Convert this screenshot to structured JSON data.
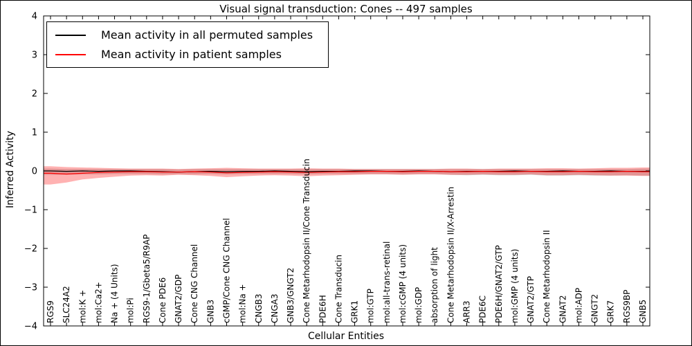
{
  "chart_data": {
    "type": "line",
    "title": "Visual signal transduction: Cones -- 497 samples",
    "xlabel": "Cellular Entities",
    "ylabel": "Inferred Activity",
    "ylim": [
      -4,
      4
    ],
    "yticks": [
      -4,
      -3,
      -2,
      -1,
      0,
      1,
      2,
      3,
      4
    ],
    "grid": false,
    "legend_position": "upper left",
    "categories": [
      "RGS9",
      "SLC24A2",
      "mol:K +",
      "mol:Ca2+",
      "Na + (4 Units)",
      "mol:Pi",
      "RGS9-1/Gbeta5/R9AP",
      "Cone PDE6",
      "GNAT2/GDP",
      "Cone CNG Channel",
      "GNB3",
      "cGMP/Cone CNG Channel",
      "mol:Na +",
      "CNGB3",
      "CNGA3",
      "GNB3/GNGT2",
      "Cone Metarhodopsin II/Cone Transducin",
      "PDE6H",
      "Cone Transducin",
      "GRK1",
      "mol:GTP",
      "mol:all-trans-retinal",
      "mol:cGMP (4 units)",
      "mol:GDP",
      "absorption of light",
      "Cone Metarhodopsin II/X-Arrestin",
      "ARR3",
      "PDE6C",
      "PDE6H/GNAT2/GTP",
      "mol:GMP (4 units)",
      "GNAT2/GTP",
      "Cone Metarhodopsin II",
      "GNAT2",
      "mol:ADP",
      "GNGT2",
      "GRK7",
      "RGS9BP",
      "GNB5"
    ],
    "series": [
      {
        "name": "Mean activity in all permuted samples",
        "color": "#000000",
        "band_color": "#999999",
        "band_opacity": 0.4,
        "values": [
          0,
          -0.01,
          0,
          -0.01,
          0,
          0,
          -0.01,
          -0.02,
          -0.03,
          -0.02,
          -0.01,
          -0.02,
          -0.01,
          -0.01,
          0,
          -0.01,
          -0.02,
          -0.01,
          -0.01,
          0,
          0,
          -0.01,
          -0.01,
          0,
          -0.01,
          -0.02,
          -0.01,
          -0.01,
          -0.01,
          0,
          -0.01,
          -0.01,
          0,
          -0.01,
          -0.01,
          0,
          -0.01,
          -0.01
        ],
        "band_upper": [
          0.06,
          0.05,
          0.05,
          0.05,
          0.05,
          0.05,
          0.05,
          0.05,
          0.04,
          0.05,
          0.05,
          0.05,
          0.05,
          0.05,
          0.05,
          0.05,
          0.05,
          0.05,
          0.05,
          0.05,
          0.05,
          0.05,
          0.05,
          0.05,
          0.05,
          0.05,
          0.05,
          0.05,
          0.05,
          0.05,
          0.05,
          0.05,
          0.05,
          0.05,
          0.05,
          0.05,
          0.05,
          0.06
        ],
        "band_lower": [
          -0.1,
          -0.1,
          -0.09,
          -0.09,
          -0.08,
          -0.08,
          -0.08,
          -0.09,
          -0.08,
          -0.09,
          -0.08,
          -0.09,
          -0.08,
          -0.08,
          -0.08,
          -0.08,
          -0.09,
          -0.08,
          -0.08,
          -0.08,
          -0.08,
          -0.08,
          -0.09,
          -0.08,
          -0.08,
          -0.1,
          -0.11,
          -0.1,
          -0.11,
          -0.11,
          -0.1,
          -0.12,
          -0.12,
          -0.11,
          -0.12,
          -0.12,
          -0.11,
          -0.12
        ]
      },
      {
        "name": "Mean activity in patient samples",
        "color": "#ff0000",
        "band_color": "#ff0000",
        "band_opacity": 0.3,
        "values": [
          -0.06,
          -0.08,
          -0.06,
          -0.04,
          -0.03,
          -0.02,
          -0.02,
          -0.03,
          -0.03,
          -0.02,
          -0.03,
          -0.05,
          -0.04,
          -0.03,
          -0.02,
          -0.03,
          -0.04,
          -0.03,
          -0.02,
          -0.02,
          -0.01,
          -0.01,
          -0.02,
          -0.01,
          -0.01,
          -0.02,
          -0.02,
          -0.01,
          -0.02,
          -0.02,
          -0.01,
          -0.02,
          -0.02,
          -0.01,
          -0.02,
          -0.02,
          -0.01,
          -0.02
        ],
        "band_upper": [
          0.12,
          0.1,
          0.09,
          0.08,
          0.07,
          0.06,
          0.06,
          0.06,
          0.05,
          0.06,
          0.07,
          0.08,
          0.07,
          0.06,
          0.06,
          0.06,
          0.07,
          0.06,
          0.06,
          0.05,
          0.05,
          0.05,
          0.05,
          0.05,
          0.05,
          0.06,
          0.06,
          0.05,
          0.06,
          0.06,
          0.06,
          0.07,
          0.07,
          0.06,
          0.07,
          0.08,
          0.08,
          0.09
        ],
        "band_lower": [
          -0.35,
          -0.3,
          -0.22,
          -0.18,
          -0.15,
          -0.12,
          -0.11,
          -0.12,
          -0.1,
          -0.11,
          -0.13,
          -0.16,
          -0.14,
          -0.12,
          -0.11,
          -0.12,
          -0.14,
          -0.12,
          -0.11,
          -0.1,
          -0.09,
          -0.09,
          -0.1,
          -0.09,
          -0.09,
          -0.1,
          -0.1,
          -0.09,
          -0.1,
          -0.1,
          -0.09,
          -0.11,
          -0.11,
          -0.1,
          -0.11,
          -0.12,
          -0.12,
          -0.13
        ]
      }
    ]
  }
}
